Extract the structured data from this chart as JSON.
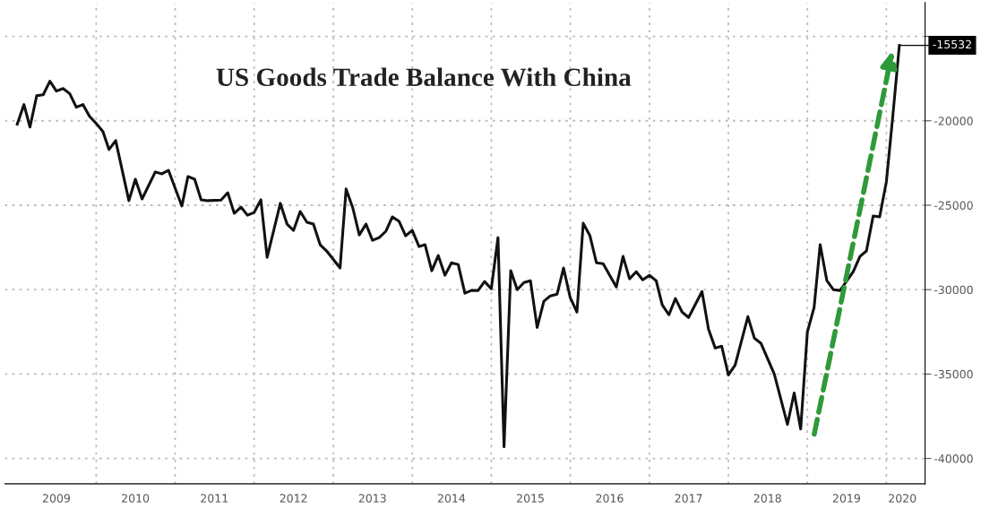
{
  "chart_data": {
    "type": "line",
    "title": "US Goods Trade Balance With China",
    "x": [
      "2009-01",
      "2009-02",
      "2009-03",
      "2009-04",
      "2009-05",
      "2009-06",
      "2009-07",
      "2009-08",
      "2009-09",
      "2009-10",
      "2009-11",
      "2009-12",
      "2010-01",
      "2010-02",
      "2010-03",
      "2010-04",
      "2010-06",
      "2010-07",
      "2010-08",
      "2010-10",
      "2010-11",
      "2010-12",
      "2011-02",
      "2011-03",
      "2011-04",
      "2011-05",
      "2011-06",
      "2011-08",
      "2011-09",
      "2011-10",
      "2011-11",
      "2011-12",
      "2012-01",
      "2012-02",
      "2012-03",
      "2012-05",
      "2012-06",
      "2012-07",
      "2012-08",
      "2012-09",
      "2012-10",
      "2012-11",
      "2012-12",
      "2013-02",
      "2013-03",
      "2013-04",
      "2013-05",
      "2013-06",
      "2013-07",
      "2013-08",
      "2013-09",
      "2013-10",
      "2013-11",
      "2013-12",
      "2014-01",
      "2014-02",
      "2014-03",
      "2014-04",
      "2014-05",
      "2014-06",
      "2014-07",
      "2014-08",
      "2014-09",
      "2014-10",
      "2014-11",
      "2014-12",
      "2015-01",
      "2015-02",
      "2015-03",
      "2015-04",
      "2015-05",
      "2015-06",
      "2015-07",
      "2015-08",
      "2015-09",
      "2015-10",
      "2015-11",
      "2015-12",
      "2016-01",
      "2016-02",
      "2016-03",
      "2016-04",
      "2016-05",
      "2016-06",
      "2016-08",
      "2016-09",
      "2016-10",
      "2016-11",
      "2016-12",
      "2017-01",
      "2017-02",
      "2017-03",
      "2017-04",
      "2017-05",
      "2017-06",
      "2017-07",
      "2017-09",
      "2017-10",
      "2017-11",
      "2017-12",
      "2018-01",
      "2018-02",
      "2018-04",
      "2018-05",
      "2018-06",
      "2018-08",
      "2018-10",
      "2018-11",
      "2018-12",
      "2019-01",
      "2019-02",
      "2019-03",
      "2019-04",
      "2019-05",
      "2019-06",
      "2019-08",
      "2019-09",
      "2019-10",
      "2019-11",
      "2019-12",
      "2020-01",
      "2020-02",
      "2020-03"
    ],
    "series": [
      {
        "color": "#111111",
        "values": [
          -20200,
          -19040,
          -20370,
          -18510,
          -18460,
          -17660,
          -18240,
          -18090,
          -18400,
          -19200,
          -19040,
          -19730,
          -20160,
          -20640,
          -21700,
          -21170,
          -24730,
          -23460,
          -24630,
          -23030,
          -23140,
          -22930,
          -25050,
          -23300,
          -23460,
          -24680,
          -24730,
          -24700,
          -24260,
          -25480,
          -25110,
          -25590,
          -25430,
          -24680,
          -28090,
          -24890,
          -26120,
          -26490,
          -25370,
          -26010,
          -26120,
          -27340,
          -27710,
          -28720,
          -24040,
          -25160,
          -26760,
          -26120,
          -27080,
          -26920,
          -26540,
          -25690,
          -25960,
          -26810,
          -26490,
          -27450,
          -27340,
          -28880,
          -27980,
          -29150,
          -28410,
          -28510,
          -30210,
          -30050,
          -30050,
          -29520,
          -29950,
          -26920,
          -39310,
          -28880,
          -30000,
          -29580,
          -29470,
          -32240,
          -30690,
          -30370,
          -30270,
          -28720,
          -30480,
          -31330,
          -26070,
          -26810,
          -28410,
          -28460,
          -29840,
          -28030,
          -29360,
          -28940,
          -29420,
          -29150,
          -29470,
          -30900,
          -31490,
          -30530,
          -31330,
          -31650,
          -30110,
          -32340,
          -33460,
          -33350,
          -35050,
          -34470,
          -31600,
          -32870,
          -33190,
          -35000,
          -37980,
          -36120,
          -38250,
          -32500,
          -31060,
          -27340,
          -29470,
          -30000,
          -30050,
          -28940,
          -28030,
          -27710,
          -25640,
          -25690,
          -23620,
          -19570,
          -15532
        ]
      }
    ],
    "xlim": [
      "2008-11-05",
      "2020-06-28"
    ],
    "xticks": [
      {
        "value": "2009-07-01",
        "label": "2009"
      },
      {
        "value": "2010-07-01",
        "label": "2010"
      },
      {
        "value": "2011-07-01",
        "label": "2011"
      },
      {
        "value": "2012-07-01",
        "label": "2012"
      },
      {
        "value": "2013-07-01",
        "label": "2013"
      },
      {
        "value": "2014-07-01",
        "label": "2014"
      },
      {
        "value": "2015-07-01",
        "label": "2015"
      },
      {
        "value": "2016-07-01",
        "label": "2016"
      },
      {
        "value": "2017-07-01",
        "label": "2017"
      },
      {
        "value": "2018-07-01",
        "label": "2018"
      },
      {
        "value": "2019-07-01",
        "label": "2019"
      },
      {
        "value": "2020-03-15",
        "label": "2020"
      },
      {
        "value": "2010-01-01",
        "label": null
      },
      {
        "value": "2011-01-01",
        "label": null
      },
      {
        "value": "2012-01-01",
        "label": null
      },
      {
        "value": "2013-01-01",
        "label": null
      },
      {
        "value": "2014-01-01",
        "label": null
      },
      {
        "value": "2015-01-01",
        "label": null
      },
      {
        "value": "2016-01-01",
        "label": null
      },
      {
        "value": "2017-01-01",
        "label": null
      },
      {
        "value": "2018-01-01",
        "label": null
      },
      {
        "value": "2019-01-01",
        "label": null
      },
      {
        "value": "2020-01-01",
        "label": null
      }
    ],
    "ylim": [
      -41500,
      -13000
    ],
    "yticks": [
      -40000,
      -35000,
      -30000,
      -25000,
      -20000,
      {
        "value": -15000,
        "label": null
      }
    ],
    "annotations": [
      {
        "text": "-15532",
        "x": "2020-03",
        "y": -15532
      }
    ],
    "grid": true,
    "line_style": "solid",
    "marker": "none"
  }
}
